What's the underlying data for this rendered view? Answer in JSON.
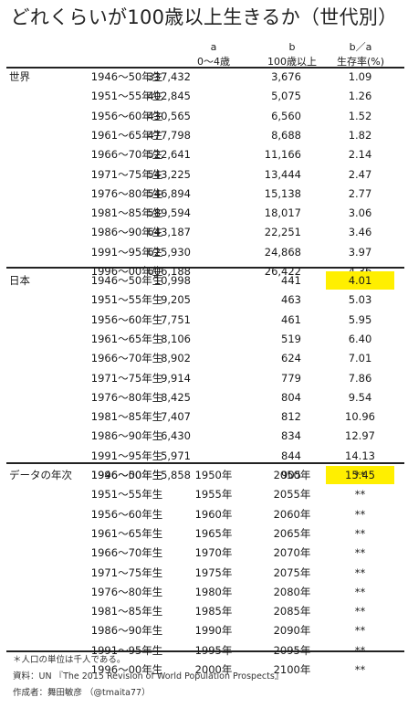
{
  "title": "どれくらいが100歳以上生きるか（世代別）",
  "headers": {
    "a_letter": "a",
    "a_label": "0～4歳",
    "b_letter": "b",
    "b_label": "100歳以上",
    "c_letter": "b／a",
    "c_label": "生存率(%)"
  },
  "sections": [
    {
      "name": "世界",
      "rows": [
        {
          "gen": "1946～50年生",
          "a": "337,432",
          "b": "3,676",
          "c": "1.09"
        },
        {
          "gen": "1951～55年生",
          "a": "402,845",
          "b": "5,075",
          "c": "1.26"
        },
        {
          "gen": "1956～60年生",
          "a": "430,565",
          "b": "6,560",
          "c": "1.52"
        },
        {
          "gen": "1961～65年生",
          "a": "477,798",
          "b": "8,688",
          "c": "1.82"
        },
        {
          "gen": "1966～70年生",
          "a": "522,641",
          "b": "11,166",
          "c": "2.14"
        },
        {
          "gen": "1971～75年生",
          "a": "543,225",
          "b": "13,444",
          "c": "2.47"
        },
        {
          "gen": "1976～80年生",
          "a": "546,894",
          "b": "15,138",
          "c": "2.77"
        },
        {
          "gen": "1981～85年生",
          "a": "589,594",
          "b": "18,017",
          "c": "3.06"
        },
        {
          "gen": "1986～90年生",
          "a": "643,187",
          "b": "22,251",
          "c": "3.46"
        },
        {
          "gen": "1991～95年生",
          "a": "625,930",
          "b": "24,868",
          "c": "3.97"
        },
        {
          "gen": "1996～00年生",
          "a": "606,188",
          "b": "26,422",
          "c": "4.36"
        }
      ]
    },
    {
      "name": "日本",
      "rows": [
        {
          "gen": "1946～50年生",
          "a": "10,998",
          "b": "441",
          "c": "4.01",
          "hl": true
        },
        {
          "gen": "1951～55年生",
          "a": "9,205",
          "b": "463",
          "c": "5.03"
        },
        {
          "gen": "1956～60年生",
          "a": "7,751",
          "b": "461",
          "c": "5.95"
        },
        {
          "gen": "1961～65年生",
          "a": "8,106",
          "b": "519",
          "c": "6.40"
        },
        {
          "gen": "1966～70年生",
          "a": "8,902",
          "b": "624",
          "c": "7.01"
        },
        {
          "gen": "1971～75年生",
          "a": "9,914",
          "b": "779",
          "c": "7.86"
        },
        {
          "gen": "1976～80年生",
          "a": "8,425",
          "b": "804",
          "c": "9.54"
        },
        {
          "gen": "1981～85年生",
          "a": "7,407",
          "b": "812",
          "c": "10.96"
        },
        {
          "gen": "1986～90年生",
          "a": "6,430",
          "b": "834",
          "c": "12.97"
        },
        {
          "gen": "1991～95年生",
          "a": "5,971",
          "b": "844",
          "c": "14.13"
        },
        {
          "gen": "1996～00年生",
          "a": "5,858",
          "b": "905",
          "c": "15.45",
          "hl": true
        }
      ]
    },
    {
      "name": "データの年次",
      "rows": [
        {
          "gen": "1946～50年生",
          "ya": "1950年",
          "yb": "2050年",
          "c": "**"
        },
        {
          "gen": "1951～55年生",
          "ya": "1955年",
          "yb": "2055年",
          "c": "**"
        },
        {
          "gen": "1956～60年生",
          "ya": "1960年",
          "yb": "2060年",
          "c": "**"
        },
        {
          "gen": "1961～65年生",
          "ya": "1965年",
          "yb": "2065年",
          "c": "**"
        },
        {
          "gen": "1966～70年生",
          "ya": "1970年",
          "yb": "2070年",
          "c": "**"
        },
        {
          "gen": "1971～75年生",
          "ya": "1975年",
          "yb": "2075年",
          "c": "**"
        },
        {
          "gen": "1976～80年生",
          "ya": "1980年",
          "yb": "2080年",
          "c": "**"
        },
        {
          "gen": "1981～85年生",
          "ya": "1985年",
          "yb": "2085年",
          "c": "**"
        },
        {
          "gen": "1986～90年生",
          "ya": "1990年",
          "yb": "2090年",
          "c": "**"
        },
        {
          "gen": "1991～95年生",
          "ya": "1995年",
          "yb": "2095年",
          "c": "**"
        },
        {
          "gen": "1996～00年生",
          "ya": "2000年",
          "yb": "2100年",
          "c": "**"
        }
      ]
    }
  ],
  "footnotes": [
    "＊人口の単位は千人である。",
    "資料：UN 『The 2015 Revision of World Population Prospects』",
    "作成者：舞田敏彦 （@tmaita77）"
  ],
  "colors": {
    "highlight": "#ffef00"
  }
}
